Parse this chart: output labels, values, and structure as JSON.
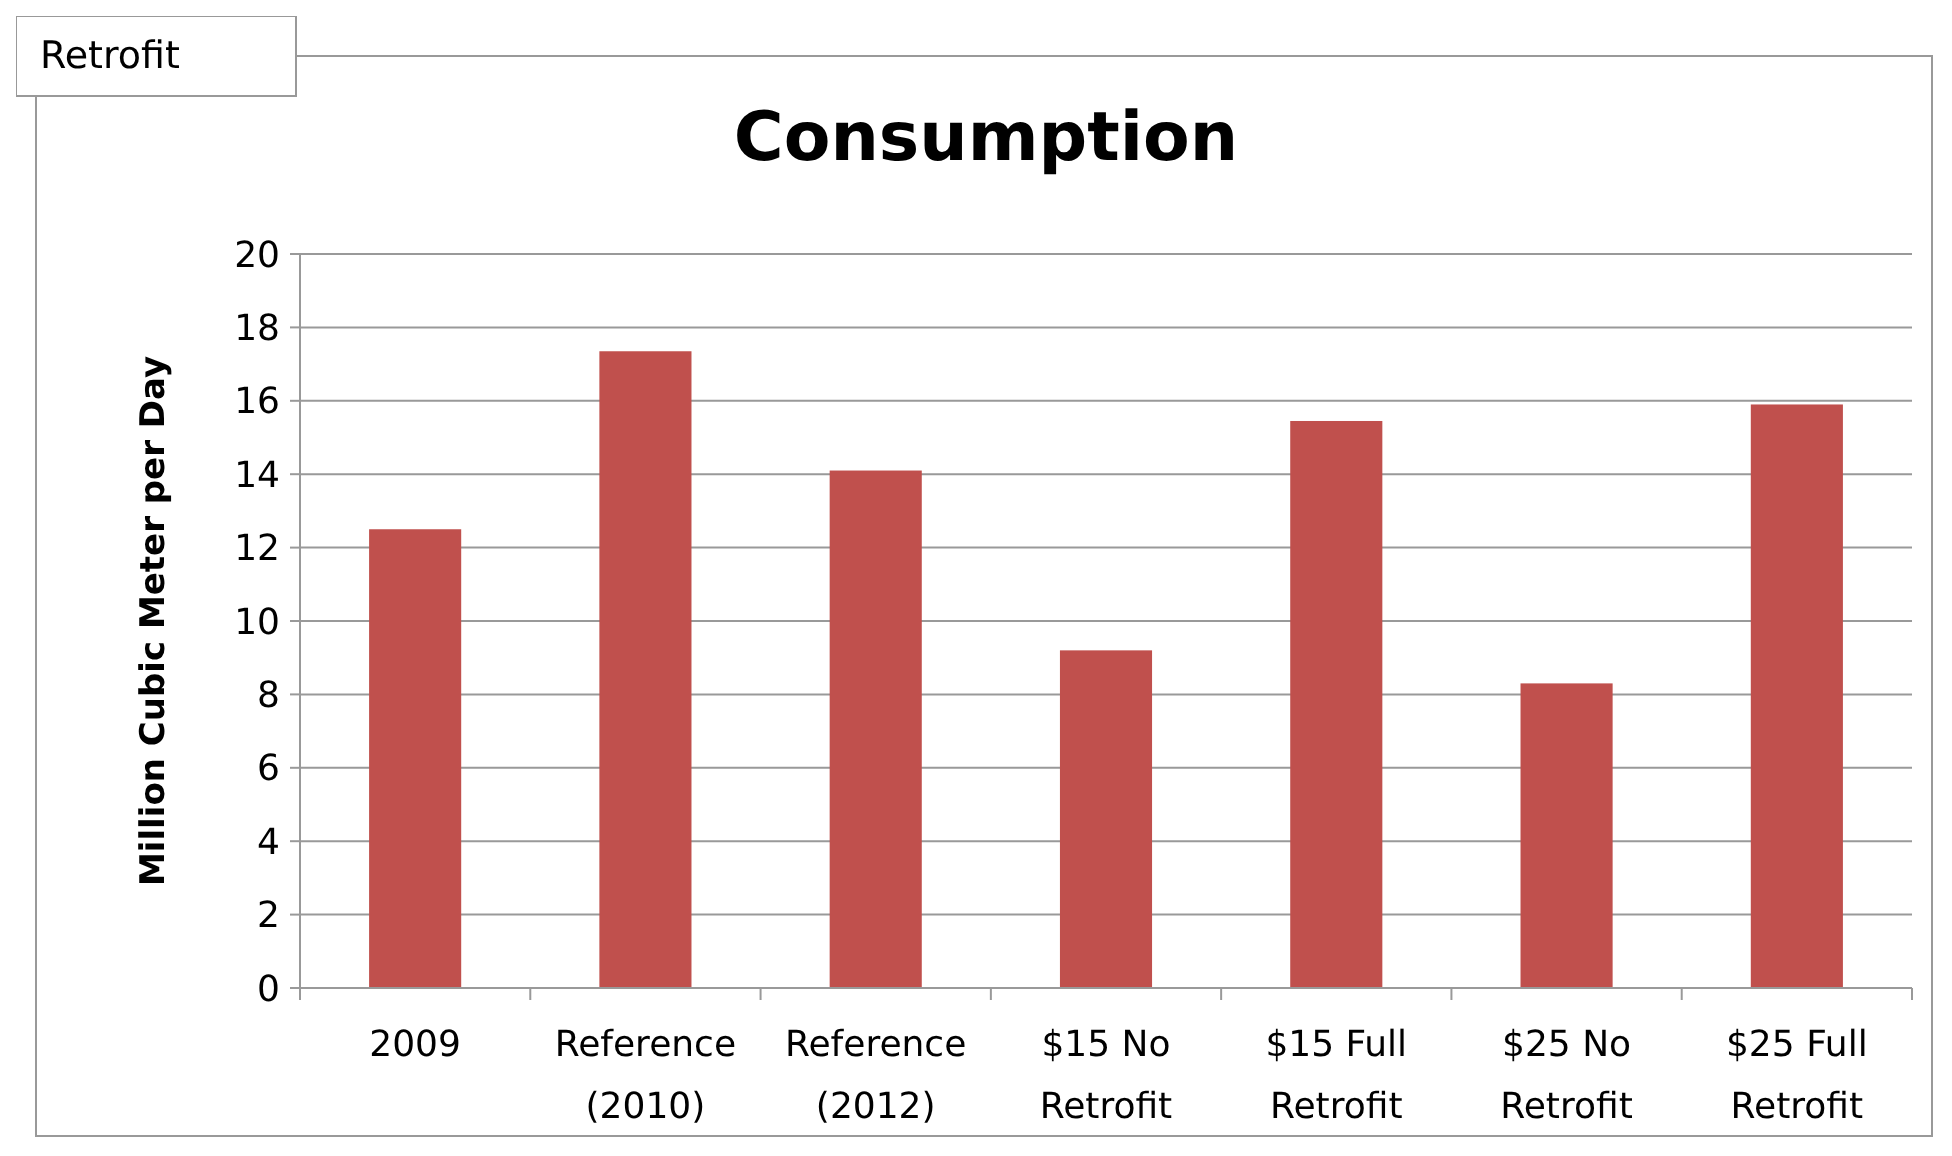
{
  "chart_data": {
    "type": "bar",
    "title": "Consumption",
    "ylabel": "Million Cubic Meter per Day",
    "categories": [
      "2009",
      "Reference (2010)",
      "Reference (2012)",
      "$15 No Retrofit",
      "$15 Full Retrofit",
      "$25 No Retrofit",
      "$25 Full Retrofit"
    ],
    "values": [
      12.5,
      17.35,
      14.1,
      9.2,
      15.45,
      8.3,
      15.9
    ],
    "color": "#c0504d",
    "ylim": [
      0,
      20
    ],
    "yticks": [
      0,
      2,
      4,
      6,
      8,
      10,
      12,
      14,
      16,
      18,
      20
    ],
    "grid": "y",
    "annotations": [
      "Retrofit"
    ]
  }
}
